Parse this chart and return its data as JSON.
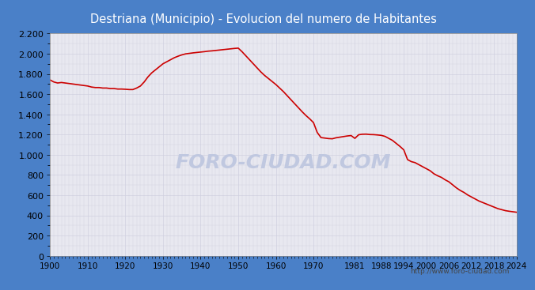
{
  "title": "Destriana (Municipio) - Evolucion del numero de Habitantes",
  "title_bg_color": "#4a80c8",
  "title_text_color": "#ffffff",
  "plot_bg_color": "#e8e8f0",
  "outer_bg_color": "#ffffff",
  "border_color": "#4a80c8",
  "line_color": "#cc0000",
  "watermark_text": "FORO-CIUDAD.COM",
  "watermark_color": "#c0c8e0",
  "footer_text": "http://www.foro-ciudad.com",
  "footer_color": "#444444",
  "years": [
    1900,
    1901,
    1902,
    1903,
    1904,
    1905,
    1906,
    1907,
    1908,
    1909,
    1910,
    1911,
    1912,
    1913,
    1914,
    1915,
    1916,
    1917,
    1918,
    1919,
    1920,
    1921,
    1922,
    1923,
    1924,
    1925,
    1926,
    1927,
    1928,
    1929,
    1930,
    1931,
    1932,
    1933,
    1934,
    1935,
    1936,
    1937,
    1938,
    1939,
    1940,
    1941,
    1942,
    1943,
    1944,
    1945,
    1946,
    1947,
    1948,
    1949,
    1950,
    1951,
    1952,
    1953,
    1954,
    1955,
    1956,
    1957,
    1958,
    1959,
    1960,
    1961,
    1962,
    1963,
    1964,
    1965,
    1966,
    1967,
    1968,
    1969,
    1970,
    1971,
    1972,
    1973,
    1974,
    1975,
    1976,
    1977,
    1978,
    1979,
    1980,
    1981,
    1982,
    1983,
    1984,
    1985,
    1986,
    1987,
    1988,
    1989,
    1990,
    1991,
    1992,
    1993,
    1994,
    1995,
    1996,
    1997,
    1998,
    1999,
    2000,
    2001,
    2002,
    2003,
    2004,
    2005,
    2006,
    2007,
    2008,
    2009,
    2010,
    2011,
    2012,
    2013,
    2014,
    2015,
    2016,
    2017,
    2018,
    2019,
    2020,
    2021,
    2022,
    2023,
    2024
  ],
  "population": [
    1740,
    1720,
    1710,
    1715,
    1710,
    1705,
    1700,
    1695,
    1690,
    1685,
    1680,
    1670,
    1665,
    1665,
    1660,
    1660,
    1655,
    1655,
    1650,
    1650,
    1648,
    1645,
    1645,
    1660,
    1680,
    1720,
    1770,
    1810,
    1840,
    1870,
    1900,
    1920,
    1940,
    1960,
    1975,
    1988,
    1998,
    2003,
    2008,
    2012,
    2016,
    2020,
    2025,
    2028,
    2032,
    2036,
    2040,
    2044,
    2048,
    2052,
    2055,
    2020,
    1980,
    1940,
    1900,
    1860,
    1820,
    1785,
    1755,
    1725,
    1695,
    1660,
    1625,
    1585,
    1545,
    1505,
    1465,
    1425,
    1388,
    1355,
    1318,
    1220,
    1170,
    1165,
    1160,
    1158,
    1168,
    1174,
    1180,
    1186,
    1190,
    1162,
    1198,
    1203,
    1204,
    1200,
    1199,
    1196,
    1192,
    1182,
    1162,
    1142,
    1112,
    1082,
    1048,
    952,
    932,
    922,
    902,
    882,
    862,
    842,
    812,
    792,
    776,
    752,
    732,
    702,
    672,
    647,
    627,
    602,
    582,
    562,
    542,
    527,
    512,
    497,
    482,
    467,
    457,
    447,
    441,
    436,
    431
  ],
  "xlim": [
    1900,
    2024
  ],
  "ylim": [
    0,
    2200
  ],
  "yticks": [
    0,
    200,
    400,
    600,
    800,
    1000,
    1200,
    1400,
    1600,
    1800,
    2000,
    2200
  ],
  "xtick_labels_major": [
    1900,
    1910,
    1920,
    1930,
    1940,
    1950,
    1960,
    1970,
    1981,
    1988,
    1994,
    2000,
    2006,
    2012,
    2018,
    2024
  ],
  "grid_color": "#d0d0e0",
  "grid_lw": 0.5,
  "line_width": 1.2
}
